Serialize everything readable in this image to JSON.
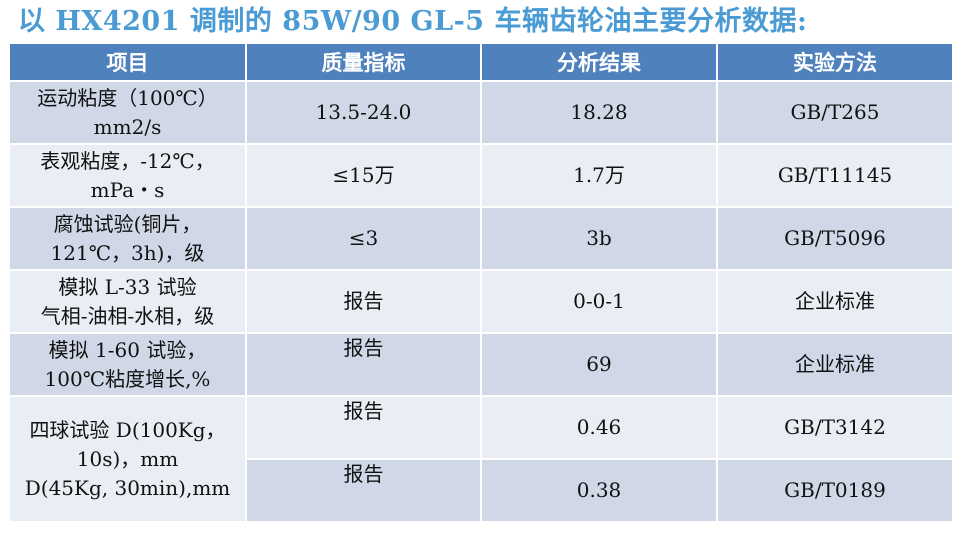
{
  "title": "以 HX4201 调制的 85W/90 GL-5 车辆齿轮油主要分析数据:",
  "table": {
    "headers": [
      "项目",
      "质量指标",
      "分析结果",
      "实验方法"
    ],
    "rows": [
      {
        "item": [
          "运动粘度（100℃）",
          "mm2/s"
        ],
        "spec": "13.5-24.0",
        "result": "18.28",
        "method": "GB/T265"
      },
      {
        "item": [
          "表观粘度，-12℃，",
          "mPa・s"
        ],
        "spec": "≤15万",
        "result": "1.7万",
        "method": "GB/T11145"
      },
      {
        "item": [
          "腐蚀试验(铜片，",
          "121℃，3h)，级"
        ],
        "spec": "≤3",
        "result": "3b",
        "method": "GB/T5096"
      },
      {
        "item": [
          "模拟 L-33 试验",
          "气相-油相-水相，级"
        ],
        "spec": "报告",
        "result": "0-0-1",
        "method": "企业标准"
      },
      {
        "item": [
          "模拟 1-60 试验，",
          "100℃粘度增长,%"
        ],
        "spec": "报告",
        "result": "69",
        "method": "企业标准"
      }
    ],
    "merged": {
      "item": [
        "四球试验 D(100Kg，",
        "10s)，mm",
        "D(45Kg, 30min),mm"
      ],
      "rows": [
        {
          "spec": "报告",
          "result": "0.46",
          "method": "GB/T3142"
        },
        {
          "spec": "报告",
          "result": "0.38",
          "method": "GB/T0189"
        }
      ]
    }
  }
}
